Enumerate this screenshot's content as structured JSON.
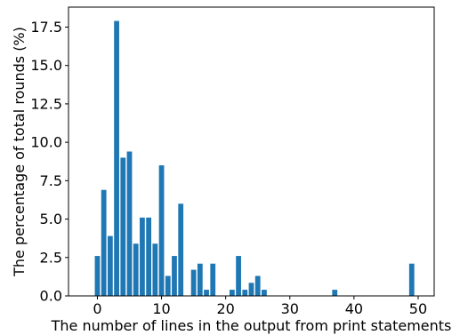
{
  "chart_data": {
    "type": "bar",
    "xlabel": "The number of lines in the output from print statements",
    "ylabel": "The percentage of total rounds (%)",
    "xlim": [
      -4.5,
      52.5
    ],
    "ylim": [
      0,
      18.8
    ],
    "x_ticks": [
      0,
      10,
      20,
      30,
      40,
      50
    ],
    "x_tick_labels": [
      "0",
      "10",
      "20",
      "30",
      "40",
      "50"
    ],
    "y_ticks": [
      0,
      2.5,
      5,
      7.5,
      10,
      12.5,
      15,
      17.5
    ],
    "y_tick_labels": [
      "0.0",
      "2.5",
      "5.0",
      "7.5",
      "10.0",
      "12.5",
      "15.0",
      "17.5"
    ],
    "grid": false,
    "bar_color": "#1f77b4",
    "x": [
      0,
      1,
      2,
      3,
      4,
      5,
      6,
      7,
      8,
      9,
      10,
      11,
      12,
      13,
      15,
      16,
      17,
      18,
      21,
      22,
      23,
      24,
      25,
      26,
      37,
      49
    ],
    "values": [
      2.6,
      6.9,
      3.9,
      17.9,
      9.0,
      9.4,
      3.4,
      5.1,
      5.1,
      3.4,
      8.5,
      1.3,
      2.6,
      6.0,
      1.7,
      2.1,
      0.4,
      2.1,
      0.4,
      2.6,
      0.4,
      0.85,
      1.3,
      0.4,
      0.4,
      2.1
    ]
  }
}
